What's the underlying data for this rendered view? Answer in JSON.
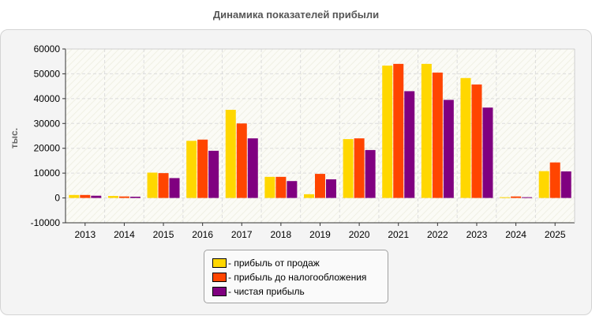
{
  "chart_data": {
    "type": "bar",
    "title": "Динамика показателей прибыли",
    "ylabel": "тыс.",
    "xlabel": "",
    "categories": [
      "2013",
      "2014",
      "2015",
      "2016",
      "2017",
      "2018",
      "2019",
      "2020",
      "2021",
      "2022",
      "2023",
      "2024",
      "2025"
    ],
    "series": [
      {
        "name": "- прибыль от продаж",
        "color": "#ffd700",
        "values": [
          1200,
          800,
          10200,
          23000,
          35500,
          8500,
          1500,
          23700,
          53300,
          54000,
          48300,
          300,
          10800
        ]
      },
      {
        "name": "- прибыль до налогообложения",
        "color": "#ff4500",
        "values": [
          1200,
          600,
          10000,
          23500,
          30000,
          8500,
          9700,
          24000,
          54000,
          50500,
          45700,
          600,
          14300
        ]
      },
      {
        "name": "- чистая прибыль",
        "color": "#800080",
        "values": [
          900,
          500,
          8000,
          19000,
          24000,
          6800,
          7500,
          19300,
          43000,
          39500,
          36400,
          300,
          10700
        ]
      }
    ],
    "ylim": [
      -10000,
      60000
    ],
    "yticks": [
      -10000,
      0,
      10000,
      20000,
      30000,
      40000,
      50000,
      60000
    ],
    "grid": true,
    "legend_position": "bottom-center"
  }
}
